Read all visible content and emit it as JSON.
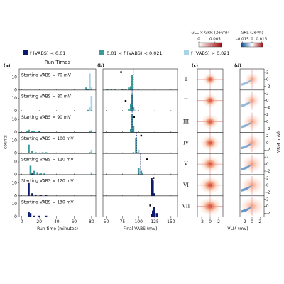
{
  "legend": [
    {
      "name": "f (VABS) < 0.01",
      "color": "#0d1b6e"
    },
    {
      "name": "0.01 < f (VABS) < 0.021",
      "color": "#3a9a98"
    },
    {
      "name": "f (VABS) > 0.021",
      "color": "#a8d4e8"
    }
  ],
  "chart_data": [
    {
      "type": "histogram-stack",
      "label": "(a)",
      "title": "Run Times",
      "xlabel": "Run time (minutes)",
      "ylabel": "counts",
      "xlim": [
        -3,
        85
      ],
      "xticks": [
        0,
        20,
        40,
        60,
        80
      ],
      "ylim": [
        0,
        16
      ],
      "yticks": [
        0,
        10
      ],
      "panels": [
        {
          "annotation": "Starting VABS = 70 mV",
          "series": [
            {
              "x": [],
              "values": []
            },
            {
              "x": [
                74,
                76
              ],
              "values": [
                2,
                1
              ]
            },
            {
              "x": [
                78,
                80
              ],
              "values": [
                13,
                2
              ]
            }
          ]
        },
        {
          "annotation": "Starting VABS = 80 mV",
          "series": [
            {
              "x": [],
              "values": []
            },
            {
              "x": [
                76
              ],
              "values": [
                1
              ]
            },
            {
              "x": [
                78,
                80
              ],
              "values": [
                3,
                12
              ]
            }
          ]
        },
        {
          "annotation": "Starting VABS = 90 mV",
          "series": [
            {
              "x": [],
              "values": []
            },
            {
              "x": [
                6,
                8,
                12,
                14,
                20,
                78
              ],
              "values": [
                1,
                2,
                1,
                1,
                1,
                1
              ]
            },
            {
              "x": [
                80
              ],
              "values": [
                2
              ]
            }
          ]
        },
        {
          "annotation": "Starting VABS = 100 mV",
          "series": [
            {
              "x": [],
              "values": []
            },
            {
              "x": [
                8,
                12,
                16,
                24,
                28,
                78
              ],
              "values": [
                7,
                2,
                1,
                1,
                1,
                1
              ]
            },
            {
              "x": [
                80
              ],
              "values": [
                3
              ]
            }
          ]
        },
        {
          "annotation": "Starting VABS = 110 mV",
          "series": [
            {
              "x": [
                12
              ],
              "values": [
                1
              ]
            },
            {
              "x": [
                10,
                14,
                18,
                22,
                26
              ],
              "values": [
                7,
                3,
                2,
                1,
                1
              ]
            },
            {
              "x": [
                80
              ],
              "values": [
                2
              ]
            }
          ]
        },
        {
          "annotation": "Starting VABS = 120 mV",
          "series": [
            {
              "x": [
                8,
                12,
                16,
                22,
                28
              ],
              "values": [
                10,
                2,
                1,
                1,
                1
              ]
            },
            {
              "x": [],
              "values": []
            },
            {
              "x": [],
              "values": []
            }
          ]
        },
        {
          "annotation": "Starting VABS = 130 mV",
          "series": [
            {
              "x": [
                8,
                10,
                14,
                20,
                28
              ],
              "values": [
                4,
                3,
                1,
                1,
                1
              ]
            },
            {
              "x": [],
              "values": []
            },
            {
              "x": [],
              "values": []
            }
          ]
        }
      ]
    },
    {
      "type": "histogram-stack",
      "label": "(b)",
      "xlabel": "Final VABS (mV)",
      "xlim": [
        45,
        160
      ],
      "xticks": [
        50,
        75,
        100,
        125,
        150
      ],
      "ylim": [
        0,
        16
      ],
      "panels": [
        {
          "dashed": 92,
          "marker": [
            73,
            14
          ],
          "series": [
            {
              "x": [],
              "values": []
            },
            {
              "x": [
                52,
                58,
                63,
                75,
                80,
                85,
                88,
                90
              ],
              "values": [
                1,
                1,
                1,
                1,
                1,
                2,
                3,
                12
              ]
            },
            {
              "x": [],
              "values": []
            }
          ]
        },
        {
          "dashed": 90,
          "marker": [
            80,
            8
          ],
          "series": [
            {
              "x": [],
              "values": []
            },
            {
              "x": [
                85,
                88,
                90,
                92
              ],
              "values": [
                2,
                6,
                13,
                3
              ]
            },
            {
              "x": [
                94
              ],
              "values": [
                1
              ]
            }
          ]
        },
        {
          "dashed": 90,
          "marker": [
            93,
            12
          ],
          "series": [
            {
              "x": [],
              "values": []
            },
            {
              "x": [
                88,
                90,
                92
              ],
              "values": [
                3,
                14,
                5
              ]
            },
            {
              "x": [],
              "values": []
            }
          ]
        },
        {
          "dashed": 97,
          "marker": [
            104,
            14
          ],
          "series": [
            {
              "x": [],
              "values": []
            },
            {
              "x": [
                92,
                96,
                98
              ],
              "values": [
                1,
                12,
                1
              ]
            },
            {
              "x": [
                100
              ],
              "values": [
                3
              ]
            }
          ]
        },
        {
          "dashed": 103,
          "marker": [
            113,
            12
          ],
          "series": [
            {
              "x": [],
              "values": []
            },
            {
              "x": [
                100,
                104,
                106
              ],
              "values": [
                5,
                3,
                1
              ]
            },
            {
              "x": [],
              "values": []
            }
          ]
        },
        {
          "dashed": 122,
          "marker": [
            123,
            14
          ],
          "series": [
            {
              "x": [
                120,
                122,
                124
              ],
              "values": [
                14,
                12,
                2
              ]
            },
            {
              "x": [],
              "values": []
            },
            {
              "x": [],
              "values": []
            }
          ]
        },
        {
          "dashed": 122,
          "marker": [
            118,
            9
          ],
          "series": [
            {
              "x": [
                120,
                122,
                124,
                128
              ],
              "values": [
                2,
                5,
                8,
                3
              ]
            },
            {
              "x": [],
              "values": []
            },
            {
              "x": [],
              "values": []
            }
          ]
        }
      ]
    },
    {
      "type": "heatmap-stack",
      "label": "(c)",
      "colorbar_label": "GLL × GRR (2e²/h)²",
      "clim": [
        0,
        0.007
      ],
      "colorbar_ticks": [
        0,
        0.005
      ],
      "xlim": [
        -3,
        3
      ],
      "xticks": [
        -2,
        0,
        2
      ],
      "xlabel": "VLM (mV)",
      "rows": [
        "I",
        "II",
        "III",
        "IV",
        "V",
        "VI",
        "VII"
      ]
    },
    {
      "type": "heatmap-stack",
      "label": "(d)",
      "colorbar_label": "GRL (2e²/h)",
      "clim": [
        -0.017,
        0.017
      ],
      "colorbar_ticks": [
        -0.015,
        0,
        0.015
      ],
      "xlim": [
        -3,
        3
      ],
      "xticks": [
        -2,
        0,
        2
      ],
      "ylim": [
        -3,
        3
      ],
      "yticks": [
        -2,
        0,
        2
      ],
      "ylabel": "VRM (mV)"
    }
  ]
}
